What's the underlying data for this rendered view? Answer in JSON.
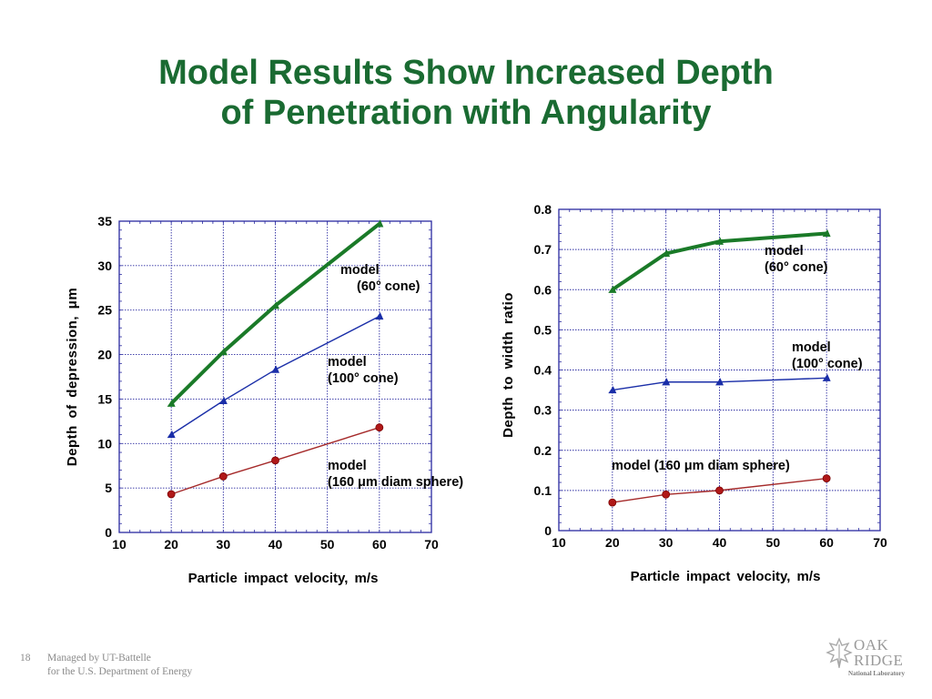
{
  "slide": {
    "title_line1": "Model Results Show Increased Depth",
    "title_line2": "of Penetration with Angularity",
    "page_number": "18",
    "footer_line1": "Managed by UT-Battelle",
    "footer_line2": "for the U.S. Department of Energy",
    "logo_line1": "OAK",
    "logo_line2": "RIDGE",
    "logo_line3": "National Laboratory"
  },
  "colors": {
    "title": "#1a6b32",
    "cone60": "#1a7a28",
    "cone100": "#1a2ea8",
    "sphere": "#a52a2a",
    "grid": "#2a2aa0"
  },
  "chart_data": [
    {
      "type": "line",
      "xlabel": "Particle impact velocity, m/s",
      "ylabel": "Depth of depression, μm",
      "xlim": [
        10,
        70
      ],
      "ylim": [
        0,
        35
      ],
      "xticks": [
        10,
        20,
        30,
        40,
        50,
        60,
        70
      ],
      "yticks": [
        0,
        5,
        10,
        15,
        20,
        25,
        30,
        35
      ],
      "grid": true,
      "x": [
        20,
        30,
        40,
        60
      ],
      "series": [
        {
          "key": "cone60",
          "values": [
            14.5,
            20.3,
            25.5,
            34.7
          ]
        },
        {
          "key": "cone100",
          "values": [
            11.0,
            14.8,
            18.3,
            24.3
          ]
        },
        {
          "key": "sphere",
          "values": [
            4.3,
            6.3,
            8.1,
            11.8
          ]
        }
      ],
      "annotations": [
        {
          "key": "cone60",
          "lines": [
            "model",
            "(60° cone)"
          ]
        },
        {
          "key": "cone100",
          "lines": [
            "model",
            "(100° cone)"
          ]
        },
        {
          "key": "sphere",
          "lines": [
            "model",
            "(160 μm diam sphere)"
          ]
        }
      ]
    },
    {
      "type": "line",
      "xlabel": "Particle impact velocity, m/s",
      "ylabel": "Depth to width ratio",
      "xlim": [
        10,
        70
      ],
      "ylim": [
        0,
        0.8
      ],
      "xticks": [
        10,
        20,
        30,
        40,
        50,
        60,
        70
      ],
      "yticks": [
        0,
        0.1,
        0.2,
        0.3,
        0.4,
        0.5,
        0.6,
        0.7,
        0.8
      ],
      "grid": true,
      "x": [
        20,
        30,
        40,
        60
      ],
      "series": [
        {
          "key": "cone60",
          "values": [
            0.6,
            0.69,
            0.72,
            0.74
          ]
        },
        {
          "key": "cone100",
          "values": [
            0.35,
            0.37,
            0.37,
            0.38
          ]
        },
        {
          "key": "sphere",
          "values": [
            0.07,
            0.09,
            0.1,
            0.13
          ]
        }
      ],
      "annotations": [
        {
          "key": "cone60",
          "lines": [
            "model",
            "(60° cone)"
          ]
        },
        {
          "key": "cone100",
          "lines": [
            "model",
            "(100° cone)"
          ]
        },
        {
          "key": "sphere",
          "lines": [
            "model (160 μm diam sphere)"
          ]
        }
      ]
    }
  ]
}
